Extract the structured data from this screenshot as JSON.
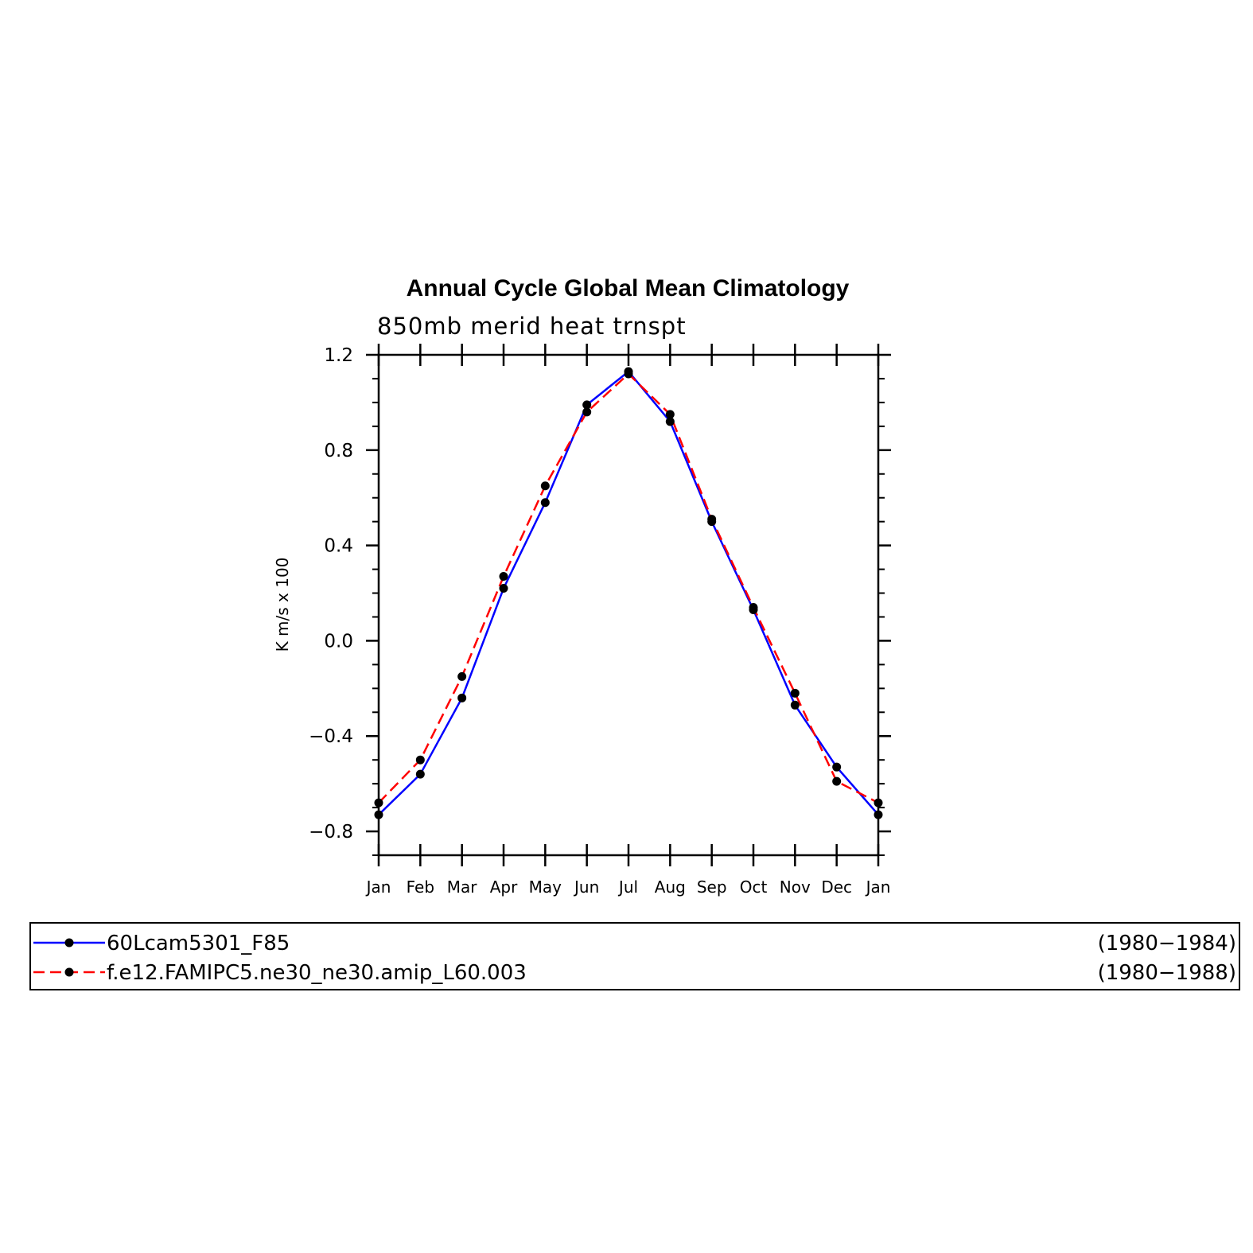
{
  "chart_data": {
    "type": "line",
    "title": "Annual Cycle Global Mean Climatology",
    "subtitle": "850mb merid heat trnspt",
    "xlabel": "",
    "ylabel": "K m/s x 100",
    "categories": [
      "Jan",
      "Feb",
      "Mar",
      "Apr",
      "May",
      "Jun",
      "Jul",
      "Aug",
      "Sep",
      "Oct",
      "Nov",
      "Dec",
      "Jan"
    ],
    "ylim": [
      -0.9,
      1.2
    ],
    "yticks": [
      -0.8,
      -0.4,
      0.0,
      0.4,
      0.8,
      1.2
    ],
    "ytick_labels": [
      "−0.8",
      "−0.4",
      "0.0",
      "0.4",
      "0.8",
      "1.2"
    ],
    "grid": false,
    "series": [
      {
        "name": "60Lcam5301_F85",
        "period": "(1980−1984)",
        "color": "#0000ff",
        "dash": "solid",
        "values": [
          -0.73,
          -0.56,
          -0.24,
          0.22,
          0.58,
          0.99,
          1.13,
          0.92,
          0.5,
          0.13,
          -0.27,
          -0.53,
          -0.73
        ]
      },
      {
        "name": "f.e12.FAMIPC5.ne30_ne30.amip_L60.003",
        "period": "(1980−1988)",
        "color": "#ff0000",
        "dash": "dashed",
        "values": [
          -0.68,
          -0.5,
          -0.15,
          0.27,
          0.65,
          0.96,
          1.12,
          0.95,
          0.51,
          0.14,
          -0.22,
          -0.59,
          -0.68
        ]
      }
    ],
    "marker_color": "#000000",
    "legend_position": "bottom"
  }
}
